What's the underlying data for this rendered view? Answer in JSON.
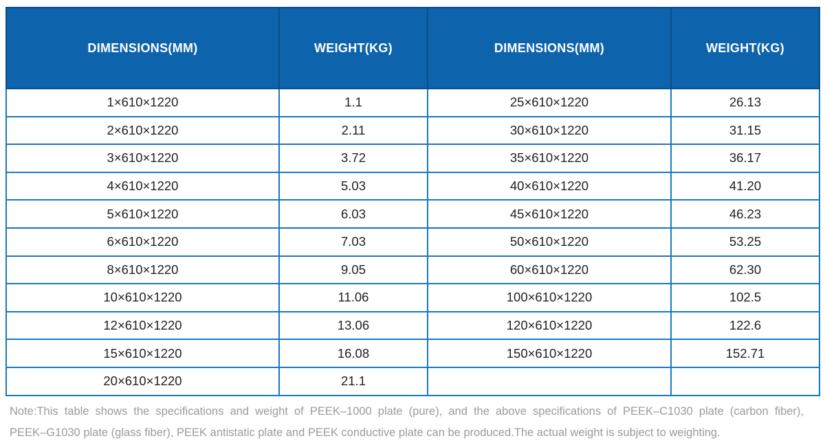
{
  "colors": {
    "header_bg": "#0D63AC",
    "header_separator": "#084F8C",
    "grid_border": "#1877C0",
    "header_text": "#FFFFFF",
    "cell_text": "#222222",
    "note_text": "#9B9B9B"
  },
  "table": {
    "headers": [
      "DIMENSIONS(MM)",
      "WEIGHT(KG)",
      "DIMENSIONS(MM)",
      "WEIGHT(KG)"
    ],
    "rows": [
      [
        "1×610×1220",
        "1.1",
        "25×610×1220",
        "26.13"
      ],
      [
        "2×610×1220",
        "2.11",
        "30×610×1220",
        "31.15"
      ],
      [
        "3×610×1220",
        "3.72",
        "35×610×1220",
        "36.17"
      ],
      [
        "4×610×1220",
        "5.03",
        "40×610×1220",
        "41.20"
      ],
      [
        "5×610×1220",
        "6.03",
        "45×610×1220",
        "46.23"
      ],
      [
        "6×610×1220",
        "7.03",
        "50×610×1220",
        "53.25"
      ],
      [
        "8×610×1220",
        "9.05",
        "60×610×1220",
        "62.30"
      ],
      [
        "10×610×1220",
        "11.06",
        "100×610×1220",
        "102.5"
      ],
      [
        "12×610×1220",
        "13.06",
        "120×610×1220",
        "122.6"
      ],
      [
        "15×610×1220",
        "16.08",
        "150×610×1220",
        "152.71"
      ],
      [
        "20×610×1220",
        "21.1",
        "",
        ""
      ]
    ]
  },
  "note": {
    "line1": "Note:This table shows the specifications and weight of PEEK–1000 plate (pure), and the above specifications of PEEK–C1030 plate (carbon fiber),",
    "line2": "PEEK–G1030 plate (glass fiber), PEEK antistatic plate and PEEK conductive plate can be produced.The actual weight is subject to weighting."
  }
}
